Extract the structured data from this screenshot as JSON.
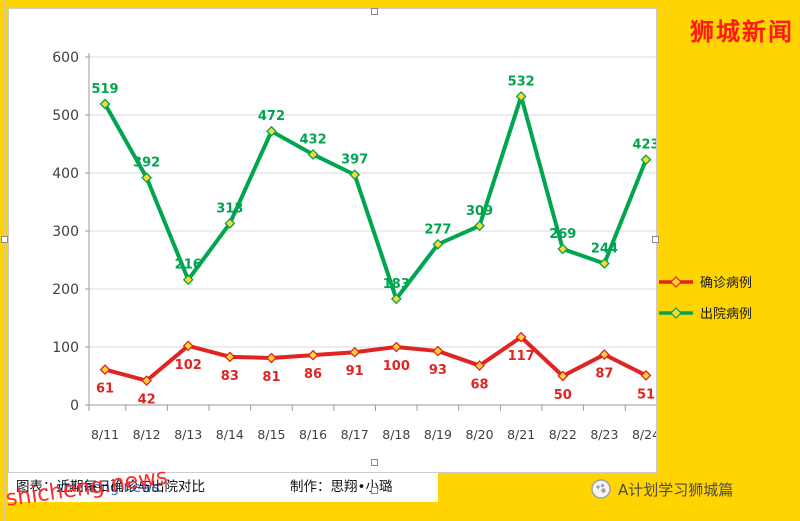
{
  "page": {
    "background": "#ffd400",
    "brand": "狮城新闻",
    "watermark": "shicheng.news",
    "caption": "图表：近期每日确诊与出院对比",
    "credit": "制作：思翔•小璐",
    "footer_right": "A计划学习狮城篇"
  },
  "chart_data": {
    "type": "line",
    "title": "",
    "x": [
      "8/11",
      "8/12",
      "8/13",
      "8/14",
      "8/15",
      "8/16",
      "8/17",
      "8/18",
      "8/19",
      "8/20",
      "8/21",
      "8/22",
      "8/23",
      "8/24"
    ],
    "series": [
      {
        "name": "确诊病例",
        "color": "#e02424",
        "marker_fill": "#ffd633",
        "label_position": "below",
        "values": [
          61,
          42,
          102,
          83,
          81,
          86,
          91,
          100,
          93,
          68,
          117,
          50,
          87,
          51
        ]
      },
      {
        "name": "出院病例",
        "color": "#00a550",
        "marker_fill": "#ffd633",
        "label_position": "above",
        "values": [
          519,
          392,
          216,
          313,
          472,
          432,
          397,
          183,
          277,
          309,
          532,
          269,
          244,
          423
        ]
      }
    ],
    "ylim": [
      0,
      600
    ],
    "ytick_step": 100,
    "grid": true,
    "legend_position": "right-middle"
  }
}
